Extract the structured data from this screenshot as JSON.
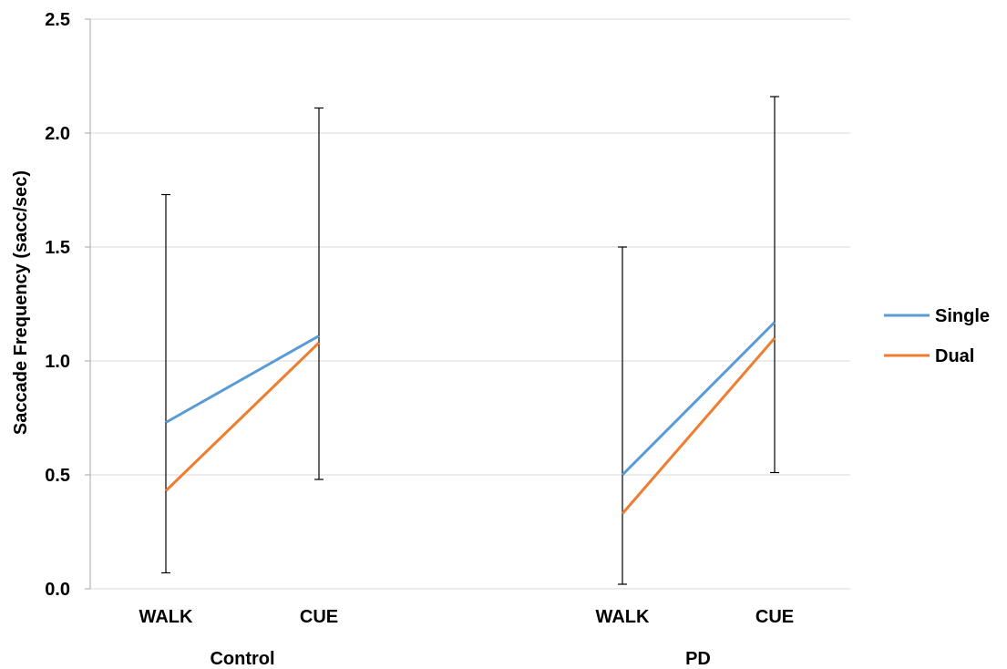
{
  "chart_data": {
    "type": "line",
    "ylabel": "Saccade Frequency (sacc/sec)",
    "xlabel": "",
    "ylim": [
      0,
      2.5
    ],
    "yticks": [
      0.0,
      0.5,
      1.0,
      1.5,
      2.0,
      2.5
    ],
    "ytick_labels": [
      "0.0",
      "0.5",
      "1.0",
      "1.5",
      "2.0",
      "2.5"
    ],
    "grid": true,
    "legend_position": "right",
    "groups": [
      {
        "label": "Control",
        "categories": [
          "WALK",
          "CUE"
        ]
      },
      {
        "label": "PD",
        "categories": [
          "WALK",
          "CUE"
        ]
      }
    ],
    "series": [
      {
        "name": "Single",
        "color": "#5b9bd5",
        "values": [
          [
            0.73,
            1.11
          ],
          [
            0.5,
            1.17
          ]
        ]
      },
      {
        "name": "Dual",
        "color": "#ed7d31",
        "values": [
          [
            0.43,
            1.08
          ],
          [
            0.33,
            1.1
          ]
        ]
      }
    ],
    "error_bars": [
      {
        "group": "Control",
        "category": "WALK",
        "low": 0.07,
        "high": 1.73
      },
      {
        "group": "Control",
        "category": "CUE",
        "low": 0.48,
        "high": 2.11
      },
      {
        "group": "PD",
        "category": "WALK",
        "low": 0.02,
        "high": 1.5
      },
      {
        "group": "PD",
        "category": "CUE",
        "low": 0.51,
        "high": 2.16
      }
    ]
  }
}
